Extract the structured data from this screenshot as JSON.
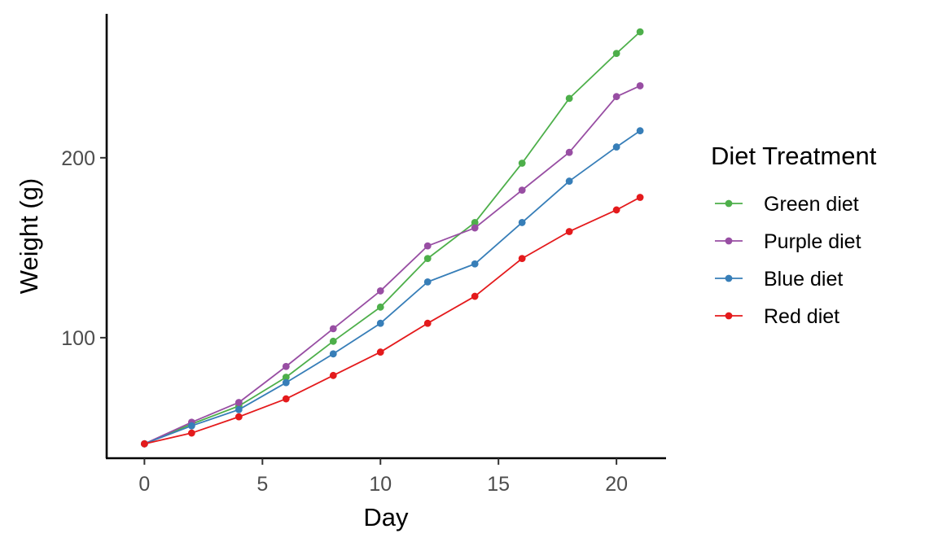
{
  "chart_data": {
    "type": "line",
    "xlabel": "Day",
    "ylabel": "Weight (g)",
    "xlim": [
      -1.6,
      22.1
    ],
    "ylim": [
      33,
      280
    ],
    "x_ticks": [
      0,
      5,
      10,
      15,
      20
    ],
    "y_ticks": [
      100,
      200
    ],
    "grid": false,
    "legend": {
      "title": "Diet Treatment",
      "placement": "right"
    },
    "x": [
      0,
      2,
      4,
      6,
      8,
      10,
      12,
      14,
      16,
      18,
      20,
      21
    ],
    "series": [
      {
        "name": "Green diet",
        "color": "#4daf4a",
        "values": [
          41,
          52,
          62,
          78,
          98,
          117,
          144,
          164,
          197,
          233,
          258,
          270
        ]
      },
      {
        "name": "Purple diet",
        "color": "#984ea3",
        "values": [
          41,
          53,
          64,
          84,
          105,
          126,
          151,
          161,
          182,
          203,
          234,
          240
        ]
      },
      {
        "name": "Blue diet",
        "color": "#377eb8",
        "values": [
          41,
          51,
          60,
          75,
          91,
          108,
          131,
          141,
          164,
          187,
          206,
          215
        ]
      },
      {
        "name": "Red diet",
        "color": "#e41a1c",
        "values": [
          41,
          47,
          56,
          66,
          79,
          92,
          108,
          123,
          144,
          159,
          171,
          178
        ]
      }
    ]
  }
}
